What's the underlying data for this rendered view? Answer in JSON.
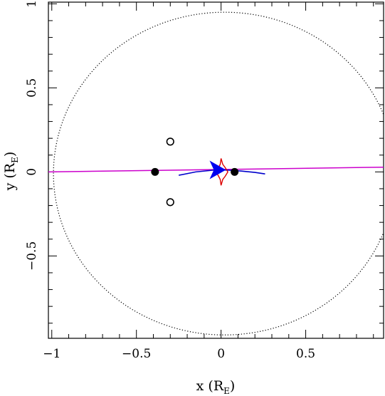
{
  "chart_data": {
    "type": "scatter",
    "title": "",
    "xlabel": "x (R",
    "xlabel_subscript": "E",
    "xlabel_close": ")",
    "ylabel": "y (R",
    "ylabel_subscript": "E",
    "ylabel_close": ")",
    "xlim": [
      -1.02,
      0.96
    ],
    "ylim": [
      -0.99,
      1.01
    ],
    "x_ticks": [
      -1,
      -0.5,
      0,
      0.5
    ],
    "x_tick_labels": [
      "−1",
      "−0.5",
      "0",
      "0.5"
    ],
    "y_ticks": [
      -0.5,
      0,
      0.5,
      1
    ],
    "y_tick_labels": [
      "−0.5",
      "0",
      "0.5",
      "1"
    ],
    "grid": false,
    "einstein_ring": {
      "center": [
        0.02,
        -0.01
      ],
      "rx": 1.01,
      "ry": 0.96,
      "color": "#000000",
      "style": "dotted"
    },
    "source_trajectory": {
      "x": [
        -1.02,
        0.96
      ],
      "y": [
        0.0,
        0.028
      ],
      "color": "#cc00cc"
    },
    "lens_masses": [
      {
        "x": -0.39,
        "y": 0.0,
        "filled": true
      },
      {
        "x": 0.08,
        "y": 0.0,
        "filled": true
      }
    ],
    "images": [
      {
        "x": -0.3,
        "y": 0.18,
        "filled": false
      },
      {
        "x": -0.3,
        "y": -0.18,
        "filled": false
      }
    ],
    "caustic": {
      "color": "#dd0000",
      "x": [
        0.0,
        0.01,
        0.025,
        0.04,
        0.025,
        0.01,
        0.0,
        -0.005,
        -0.015,
        -0.03,
        -0.015,
        -0.005,
        0.0
      ],
      "y": [
        0.08,
        0.045,
        0.025,
        0.0,
        -0.025,
        -0.045,
        -0.08,
        -0.045,
        -0.025,
        0.0,
        0.025,
        0.045,
        0.08
      ]
    },
    "image_arc": {
      "color": "#0000cc",
      "x": [
        -0.25,
        -0.15,
        -0.05,
        0.0,
        0.05,
        0.12,
        0.2,
        0.26
      ],
      "y": [
        -0.02,
        0.0,
        0.01,
        0.012,
        0.01,
        0.005,
        -0.003,
        -0.012
      ]
    },
    "source_marker": {
      "x": -0.03,
      "y": 0.012,
      "color": "#0000ee"
    },
    "source_dot": {
      "x": 0.0,
      "y": 0.012,
      "color": "#0000ee"
    }
  }
}
